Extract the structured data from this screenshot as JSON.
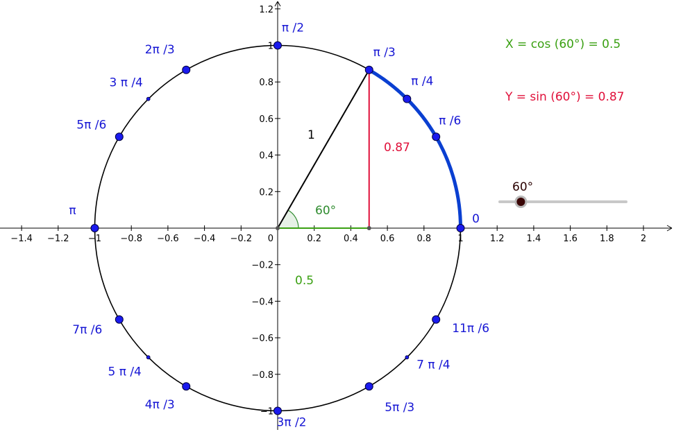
{
  "colors": {
    "axis": "#000000",
    "circle": "#000000",
    "arc": "#0a3fd1",
    "point": "#1a1aee",
    "angle_text": "#1515d4",
    "cos": "#3aa012",
    "sin": "#e0103a",
    "angle_sector": "#2e8b2e",
    "slider_track": "#c8c8c8",
    "slider_knob": "#3a0505"
  },
  "axes": {
    "x_ticks": [
      {
        "v": -1.4,
        "t": "−1.4"
      },
      {
        "v": -1.2,
        "t": "−1.2"
      },
      {
        "v": -1,
        "t": "−1"
      },
      {
        "v": -0.8,
        "t": "−0.8"
      },
      {
        "v": -0.6,
        "t": "−0.6"
      },
      {
        "v": -0.4,
        "t": "−0.4"
      },
      {
        "v": -0.2,
        "t": "−0.2"
      },
      {
        "v": 0.2,
        "t": "0.2"
      },
      {
        "v": 0.4,
        "t": "0.4"
      },
      {
        "v": 0.6,
        "t": "0.6"
      },
      {
        "v": 0.8,
        "t": "0.8"
      },
      {
        "v": 1,
        "t": "1"
      },
      {
        "v": 1.2,
        "t": "1.2"
      },
      {
        "v": 1.4,
        "t": "1.4"
      },
      {
        "v": 1.6,
        "t": "1.6"
      },
      {
        "v": 1.8,
        "t": "1.8"
      },
      {
        "v": 2,
        "t": "2"
      }
    ],
    "y_ticks": [
      {
        "v": 1.2,
        "t": "1.2"
      },
      {
        "v": 1,
        "t": "1"
      },
      {
        "v": 0.8,
        "t": "0.8"
      },
      {
        "v": 0.6,
        "t": "0.6"
      },
      {
        "v": 0.4,
        "t": "0.4"
      },
      {
        "v": 0.2,
        "t": "0.2"
      },
      {
        "v": -0.2,
        "t": "−0.2"
      },
      {
        "v": -0.4,
        "t": "−0.4"
      },
      {
        "v": -0.6,
        "t": "−0.6"
      },
      {
        "v": -0.8,
        "t": "−0.8"
      },
      {
        "v": -1,
        "t": "−1"
      }
    ],
    "origin_label": "0",
    "x_range": [
      -1.5,
      2.15
    ],
    "y_range": [
      -1.1,
      1.25
    ]
  },
  "circle": {
    "radius": 1,
    "highlight_arc_deg": [
      0,
      60
    ]
  },
  "angle_points": [
    {
      "deg": 0,
      "label": "0",
      "size": "none"
    },
    {
      "deg": 30,
      "label": "π /6",
      "size": "big"
    },
    {
      "deg": 45,
      "label": "π /4",
      "size": "big"
    },
    {
      "deg": 60,
      "label": "π /3",
      "size": "big"
    },
    {
      "deg": 90,
      "label": "π /2",
      "size": "big"
    },
    {
      "deg": 120,
      "label": "2π /3",
      "size": "big"
    },
    {
      "deg": 135,
      "label": "3 π /4",
      "size": "small"
    },
    {
      "deg": 150,
      "label": "5π /6",
      "size": "big"
    },
    {
      "deg": 180,
      "label": "π",
      "size": "big"
    },
    {
      "deg": 210,
      "label": "7π /6",
      "size": "big"
    },
    {
      "deg": 225,
      "label": "5 π /4",
      "size": "small"
    },
    {
      "deg": 240,
      "label": "4π /3",
      "size": "big"
    },
    {
      "deg": 270,
      "label": "3π /2",
      "size": "big"
    },
    {
      "deg": 300,
      "label": "5π /3",
      "size": "big"
    },
    {
      "deg": 315,
      "label": "7 π /4",
      "size": "small"
    },
    {
      "deg": 330,
      "label": "11π /6",
      "size": "big"
    },
    {
      "deg": 360,
      "label": "",
      "size": "big"
    }
  ],
  "triangle": {
    "angle_deg": 60,
    "angle_label": "60°",
    "hyp_label": "1",
    "sin_label": "0.87",
    "cos_label": "0.5"
  },
  "readouts": {
    "cos_text": "X = cos (60°) = 0.5",
    "sin_text": "Y = sin (60°) = 0.87"
  },
  "slider": {
    "label": "60°",
    "value_fraction": 0.167
  }
}
